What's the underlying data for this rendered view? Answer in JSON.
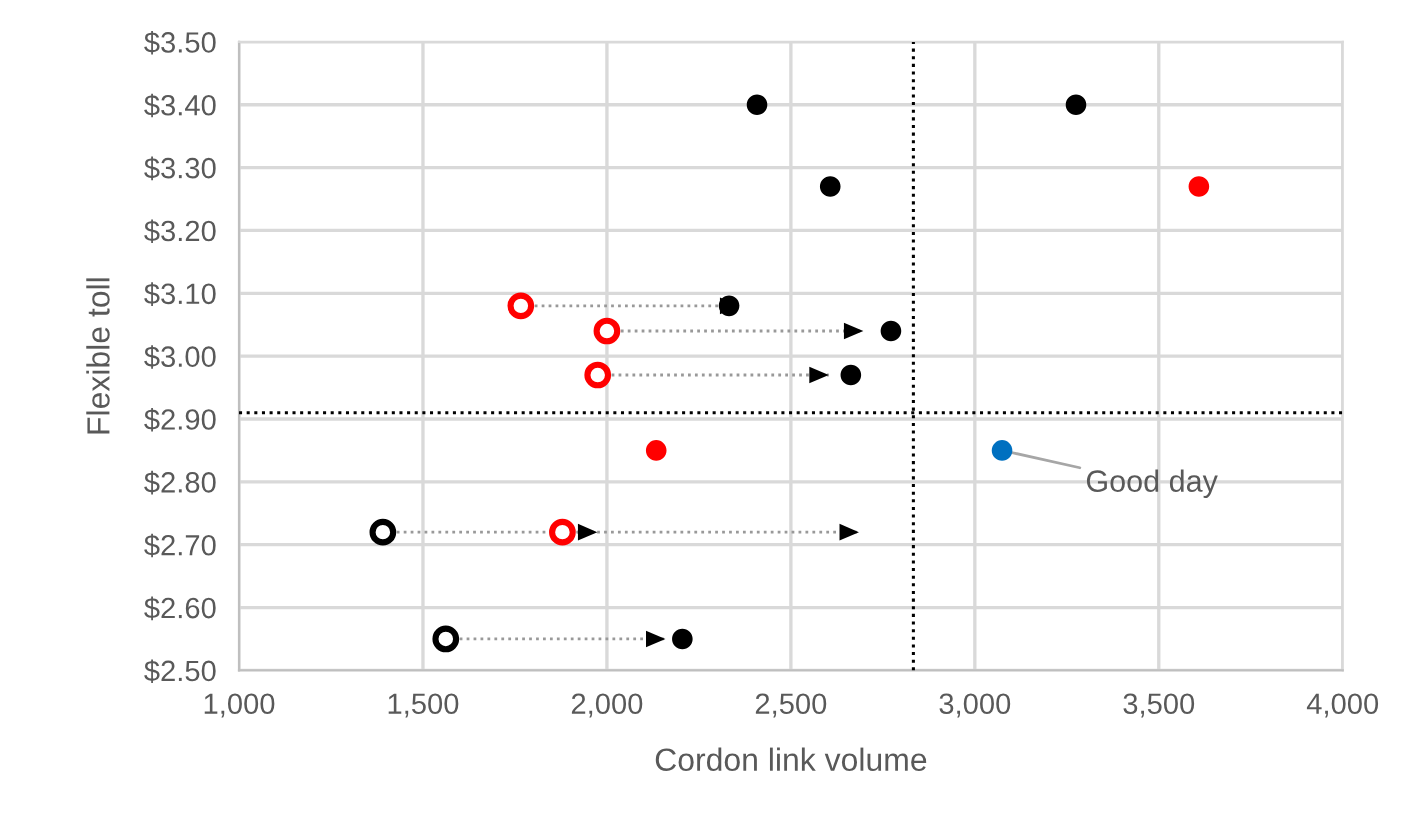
{
  "chart_data": {
    "type": "scatter",
    "xlabel": "Cordon link volume",
    "ylabel": "Flexible toll",
    "xlim": [
      1000,
      4000
    ],
    "ylim": [
      2.5,
      3.5
    ],
    "xticks": [
      {
        "value": 1000,
        "label": "1,000"
      },
      {
        "value": 1500,
        "label": "1,500"
      },
      {
        "value": 2000,
        "label": "2,000"
      },
      {
        "value": 2500,
        "label": "2,500"
      },
      {
        "value": 3000,
        "label": "3,000"
      },
      {
        "value": 3500,
        "label": "3,500"
      },
      {
        "value": 4000,
        "label": "4,000"
      }
    ],
    "yticks": [
      {
        "value": 2.5,
        "label": "$2.50"
      },
      {
        "value": 2.6,
        "label": "$2.60"
      },
      {
        "value": 2.7,
        "label": "$2.70"
      },
      {
        "value": 2.8,
        "label": "$2.80"
      },
      {
        "value": 2.9,
        "label": "$2.90"
      },
      {
        "value": 3.0,
        "label": "$3.00"
      },
      {
        "value": 3.1,
        "label": "$3.10"
      },
      {
        "value": 3.2,
        "label": "$3.20"
      },
      {
        "value": 3.3,
        "label": "$3.30"
      },
      {
        "value": 3.4,
        "label": "$3.40"
      },
      {
        "value": 3.5,
        "label": "$3.50"
      }
    ],
    "grid": true,
    "marker": "circle",
    "series": [
      {
        "type": "line",
        "color": "#999999",
        "line_style": "dotted",
        "marker": "none",
        "x": [
          1766,
          2360
        ],
        "values": [
          3.08,
          3.08
        ]
      },
      {
        "type": "line",
        "color": "#999999",
        "line_style": "dotted",
        "marker": "none",
        "x": [
          2000,
          2697
        ],
        "values": [
          3.04,
          3.04
        ]
      },
      {
        "type": "line",
        "color": "#999999",
        "line_style": "dotted",
        "marker": "none",
        "x": [
          1975,
          2603
        ],
        "values": [
          2.97,
          2.97
        ]
      },
      {
        "type": "line",
        "color": "#999999",
        "line_style": "dotted",
        "marker": "none",
        "x": [
          1391,
          1974
        ],
        "values": [
          2.72,
          2.72
        ]
      },
      {
        "type": "line",
        "color": "#999999",
        "line_style": "dotted",
        "marker": "none",
        "x": [
          1879,
          2685
        ],
        "values": [
          2.72,
          2.72
        ]
      },
      {
        "type": "line",
        "color": "#999999",
        "line_style": "dotted",
        "marker": "none",
        "x": [
          1562,
          2159
        ],
        "values": [
          2.55,
          2.55
        ]
      },
      {
        "color": "#000000",
        "x": [
          2408,
          3275,
          2607,
          2332,
          2772,
          2663,
          2205
        ],
        "values": [
          3.4,
          3.4,
          3.27,
          3.08,
          3.04,
          2.97,
          2.55
        ]
      },
      {
        "color": "#ff0000",
        "x": [
          3609,
          2134
        ],
        "values": [
          3.27,
          2.85
        ]
      },
      {
        "color": "#ff0000",
        "x": [
          1766,
          2000,
          1975,
          1879
        ],
        "values": [
          3.08,
          3.04,
          2.97,
          2.72
        ]
      },
      {
        "color": "#000000",
        "x": [
          1391,
          1562
        ],
        "values": [
          2.72,
          2.55
        ]
      },
      {
        "color": "#0070c0",
        "x": [
          3074
        ],
        "values": [
          2.85
        ]
      }
    ],
    "ref_lines": [
      {
        "axis": "x",
        "value": 2833,
        "color": "#000000",
        "line_style": "dotted"
      },
      {
        "axis": "y",
        "value": 2.91,
        "color": "#000000",
        "line_style": "dotted"
      }
    ],
    "annotations": [
      {
        "text": "Good day",
        "x": 3074,
        "y": 2.85
      }
    ]
  }
}
